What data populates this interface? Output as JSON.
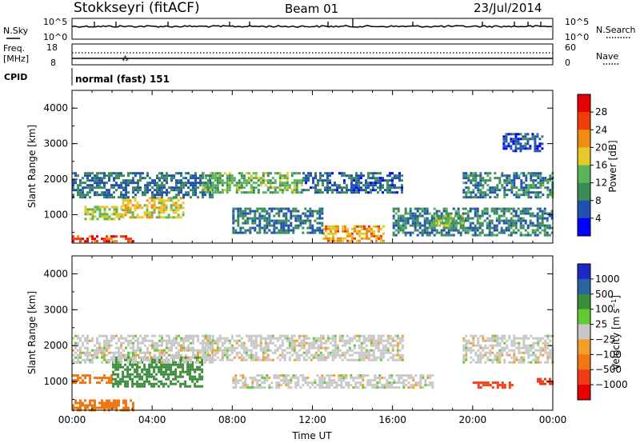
{
  "header": {
    "station": "Stokkseyri (fitACF)",
    "beam": "Beam 01",
    "date": "23/Jul/2014"
  },
  "top_strips": {
    "nsky_label": "N.Sky",
    "nsky_ticks": [
      "10^5",
      "10^0"
    ],
    "nsearch_label": "N.Search",
    "nsearch_ticks": [
      "10^5",
      "10^0"
    ],
    "freq_label_1": "Freq.",
    "freq_label_2": "[MHz]",
    "freq_ticks": [
      "18",
      "8"
    ],
    "nave_label": "Nave",
    "nave_ticks": [
      "60",
      "0"
    ],
    "cpid_label": "CPID",
    "cpid_text": "normal (fast) 151"
  },
  "colors": {
    "power_scale": [
      "#0000ff",
      "#2050b0",
      "#3c8c5a",
      "#5ab45a",
      "#e6c828",
      "#f08c14",
      "#f03c0a",
      "#e60000"
    ],
    "velocity_scale": [
      "#1e28c8",
      "#2864a0",
      "#3c8c3c",
      "#64c832",
      "#c8c8c8",
      "#c8c8c8",
      "#f0a028",
      "#f07814",
      "#f03c14",
      "#e60000"
    ]
  },
  "chart_data": [
    {
      "type": "heatmap",
      "panel": "power",
      "ylabel": "Slant Range [km]",
      "yticks": [
        "1000",
        "2000",
        "3000",
        "4000"
      ],
      "ylim": [
        200,
        4500
      ],
      "xlim": [
        "00:00",
        "24:00"
      ],
      "colorbar_label": "Power [dB]",
      "colorbar_ticks": [
        "28",
        "24",
        "20",
        "16",
        "12",
        "8",
        "4"
      ],
      "regions": [
        {
          "t0": 0.0,
          "t1": 3.0,
          "r0": 220,
          "r1": 420,
          "v": 27
        },
        {
          "t0": 0.5,
          "t1": 2.5,
          "r0": 900,
          "r1": 1250,
          "v": 16
        },
        {
          "t0": 2.5,
          "t1": 5.5,
          "r0": 900,
          "r1": 1500,
          "v": 18
        },
        {
          "t0": 0.0,
          "t1": 7.0,
          "r0": 1500,
          "r1": 2200,
          "v": 8
        },
        {
          "t0": 6.5,
          "t1": 11.5,
          "r0": 1600,
          "r1": 2200,
          "v": 13
        },
        {
          "t0": 11.5,
          "t1": 16.5,
          "r0": 1600,
          "r1": 2200,
          "v": 7
        },
        {
          "t0": 12.5,
          "t1": 15.5,
          "r0": 230,
          "r1": 700,
          "v": 21
        },
        {
          "t0": 8.0,
          "t1": 12.5,
          "r0": 500,
          "r1": 1200,
          "v": 8
        },
        {
          "t0": 16.0,
          "t1": 24.0,
          "r0": 400,
          "r1": 1200,
          "v": 9
        },
        {
          "t0": 18.0,
          "t1": 19.5,
          "r0": 700,
          "r1": 1000,
          "v": 14
        },
        {
          "t0": 19.5,
          "t1": 24.0,
          "r0": 1500,
          "r1": 2200,
          "v": 9
        },
        {
          "t0": 21.5,
          "t1": 23.5,
          "r0": 2800,
          "r1": 3300,
          "v": 6
        }
      ]
    },
    {
      "type": "heatmap",
      "panel": "velocity",
      "ylabel": "Slant Range [km]",
      "yticks": [
        "1000",
        "2000",
        "3000",
        "4000"
      ],
      "ylim": [
        200,
        4500
      ],
      "xlabel": "Time UT",
      "xticks": [
        "00:00",
        "04:00",
        "08:00",
        "12:00",
        "16:00",
        "20:00",
        "00:00"
      ],
      "xlim": [
        "00:00",
        "24:00"
      ],
      "colorbar_label": "Velocity [m s^-1]",
      "colorbar_ticks": [
        "1000",
        "500",
        "100",
        "25",
        "−25",
        "−100",
        "−500",
        "−1000"
      ],
      "regions": [
        {
          "t0": 0.0,
          "t1": 3.0,
          "r0": 220,
          "r1": 500,
          "v": -150
        },
        {
          "t0": 0.0,
          "t1": 2.0,
          "r0": 950,
          "r1": 1200,
          "v": -200
        },
        {
          "t0": 2.0,
          "t1": 6.5,
          "r0": 850,
          "r1": 1700,
          "v": 200
        },
        {
          "t0": 0.0,
          "t1": 7.0,
          "r0": 1500,
          "r1": 2300,
          "v": 0
        },
        {
          "t0": 6.5,
          "t1": 16.5,
          "r0": 1600,
          "r1": 2300,
          "v": 0
        },
        {
          "t0": 8.0,
          "t1": 18.0,
          "r0": 800,
          "r1": 1200,
          "v": 0
        },
        {
          "t0": 19.5,
          "t1": 24.0,
          "r0": 1500,
          "r1": 2300,
          "v": 0
        },
        {
          "t0": 20.0,
          "t1": 22.0,
          "r0": 800,
          "r1": 1000,
          "v": -600
        },
        {
          "t0": 23.2,
          "t1": 24.0,
          "r0": 900,
          "r1": 1100,
          "v": -700
        }
      ]
    }
  ]
}
